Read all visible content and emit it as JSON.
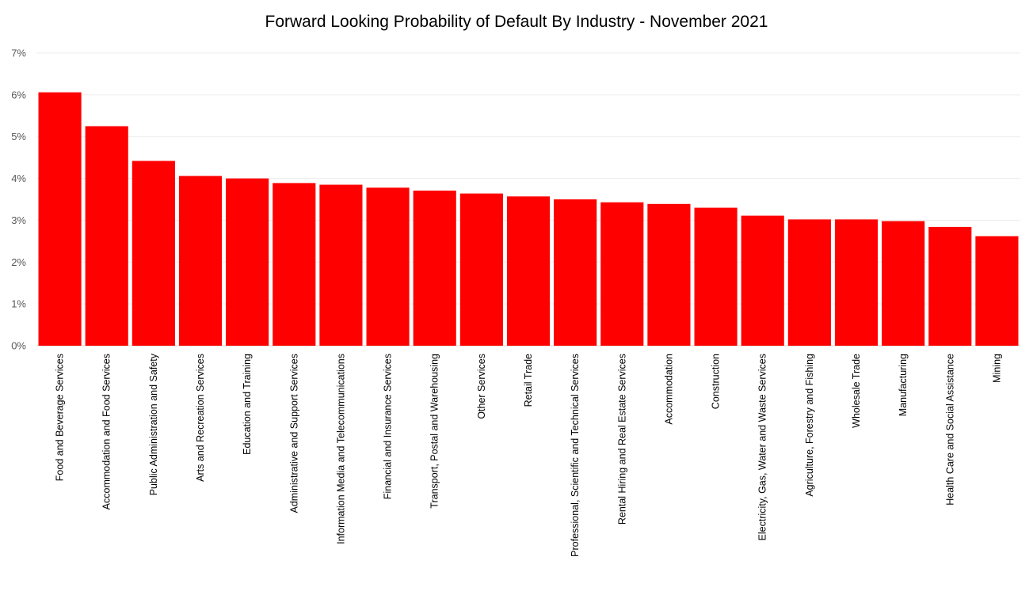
{
  "chart_data": {
    "type": "bar",
    "title": "Forward Looking Probability of Default By Industry - November 2021",
    "xlabel": "",
    "ylabel": "",
    "ylim": [
      0,
      7
    ],
    "yticks": [
      0,
      1,
      2,
      3,
      4,
      5,
      6,
      7
    ],
    "ytick_format": "{v}%",
    "grid": true,
    "legend": "none",
    "bar_color": "#ff0000",
    "categories": [
      "Food and Beverage Services",
      "Accommodation and Food Services",
      "Public Administration and Safety",
      "Arts and Recreation Services",
      "Education and Training",
      "Administrative and Support Services",
      "Information Media and Telecommunications",
      "Financial and Insurance Services",
      "Transport, Postal and Warehousing",
      "Other Services",
      "Retail Trade",
      "Professional, Scientific and Technical Services",
      "Rental Hiring and Real Estate Services",
      "Accommodation",
      "Construction",
      "Electricity, Gas, Water and Waste Services",
      "Agriculture, Forestry and Fishing",
      "Wholesale Trade",
      "Manufacturing",
      "Health Care and Social Assistance",
      "Mining"
    ],
    "values": [
      6.06,
      5.25,
      4.42,
      4.06,
      4.0,
      3.89,
      3.85,
      3.78,
      3.71,
      3.64,
      3.57,
      3.5,
      3.43,
      3.39,
      3.3,
      3.11,
      3.02,
      3.02,
      2.98,
      2.84,
      2.62
    ]
  }
}
